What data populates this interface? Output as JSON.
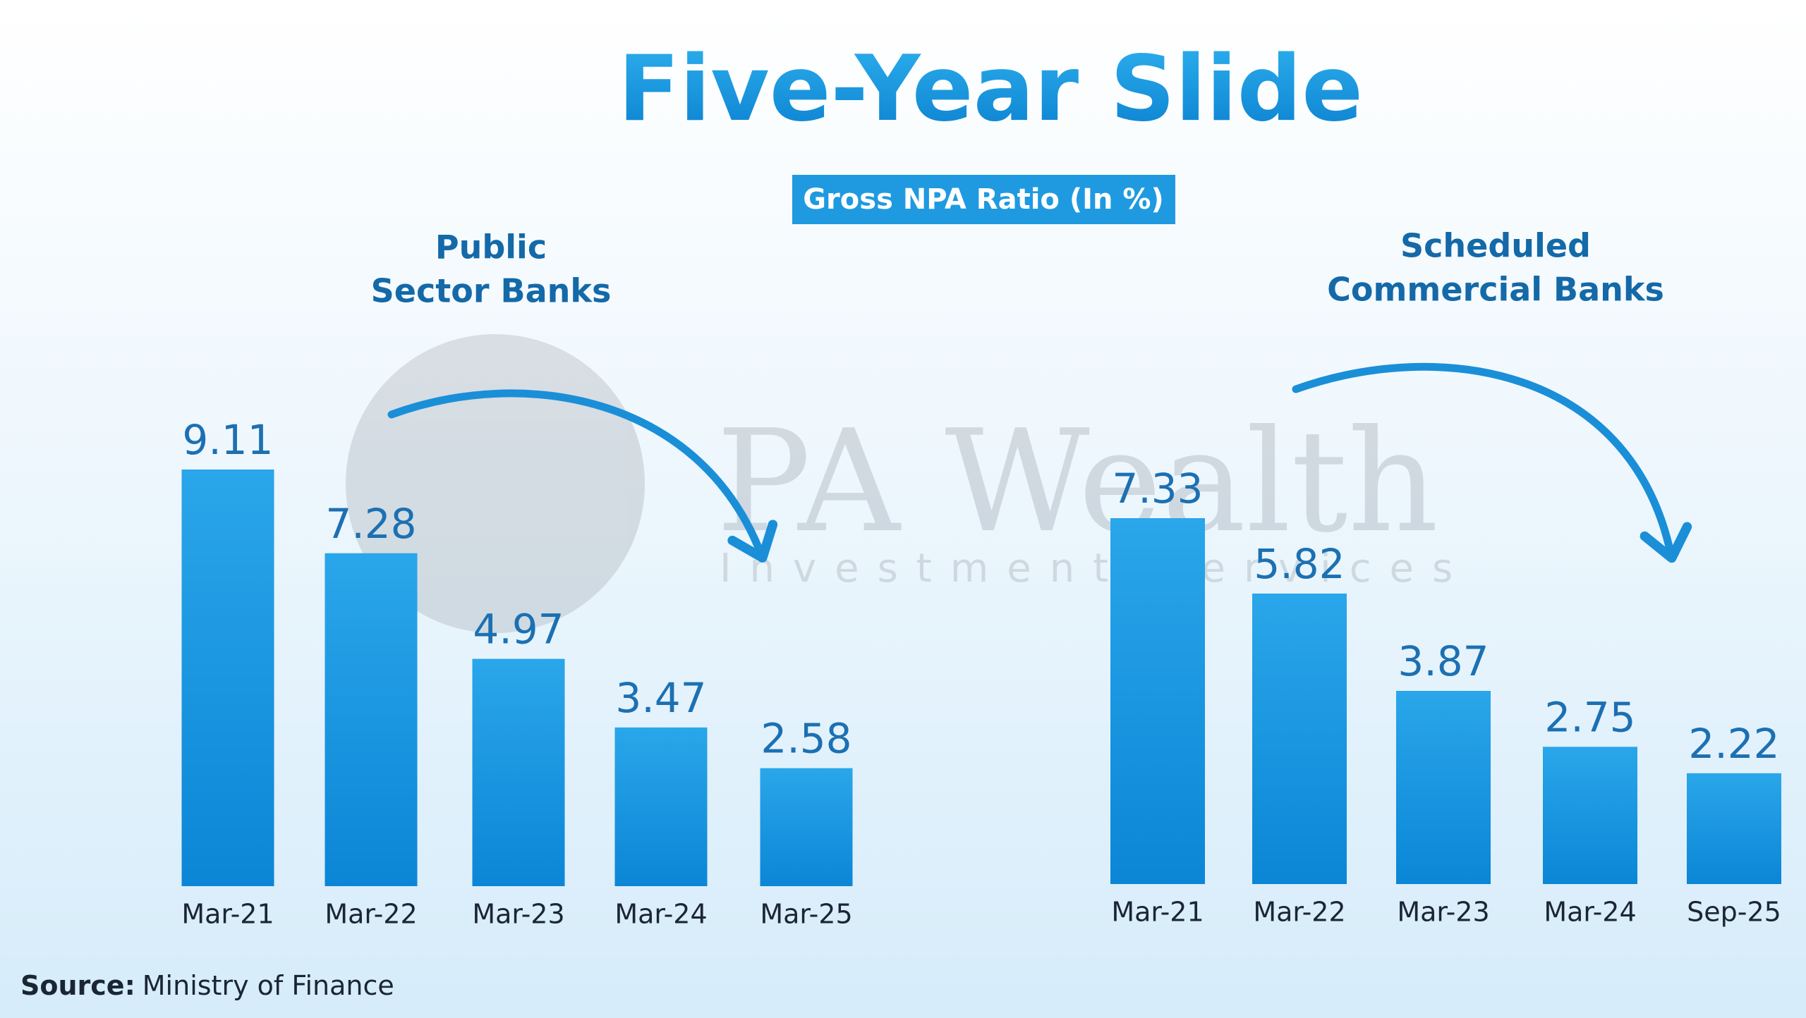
{
  "title": "Five-Year Slide",
  "subtitle": "Gross NPA Ratio (In %)",
  "watermark": {
    "name": "PA Wealth",
    "tagline": "Investment Services"
  },
  "source_label": "Source:",
  "source": "Ministry of Finance",
  "chart_data": [
    {
      "type": "bar",
      "title": [
        "Public",
        "Sector Banks"
      ],
      "categories": [
        "Mar-21",
        "Mar-22",
        "Mar-23",
        "Mar-24",
        "Mar-25"
      ],
      "values": [
        9.11,
        7.28,
        4.97,
        3.47,
        2.58
      ],
      "color": "#1a96dc"
    },
    {
      "type": "bar",
      "title": [
        "Scheduled",
        "Commercial Banks"
      ],
      "categories": [
        "Mar-21",
        "Mar-22",
        "Mar-23",
        "Mar-24",
        "Sep-25"
      ],
      "values": [
        7.33,
        5.82,
        3.87,
        2.75,
        2.22
      ],
      "color": "#1a96dc"
    }
  ]
}
